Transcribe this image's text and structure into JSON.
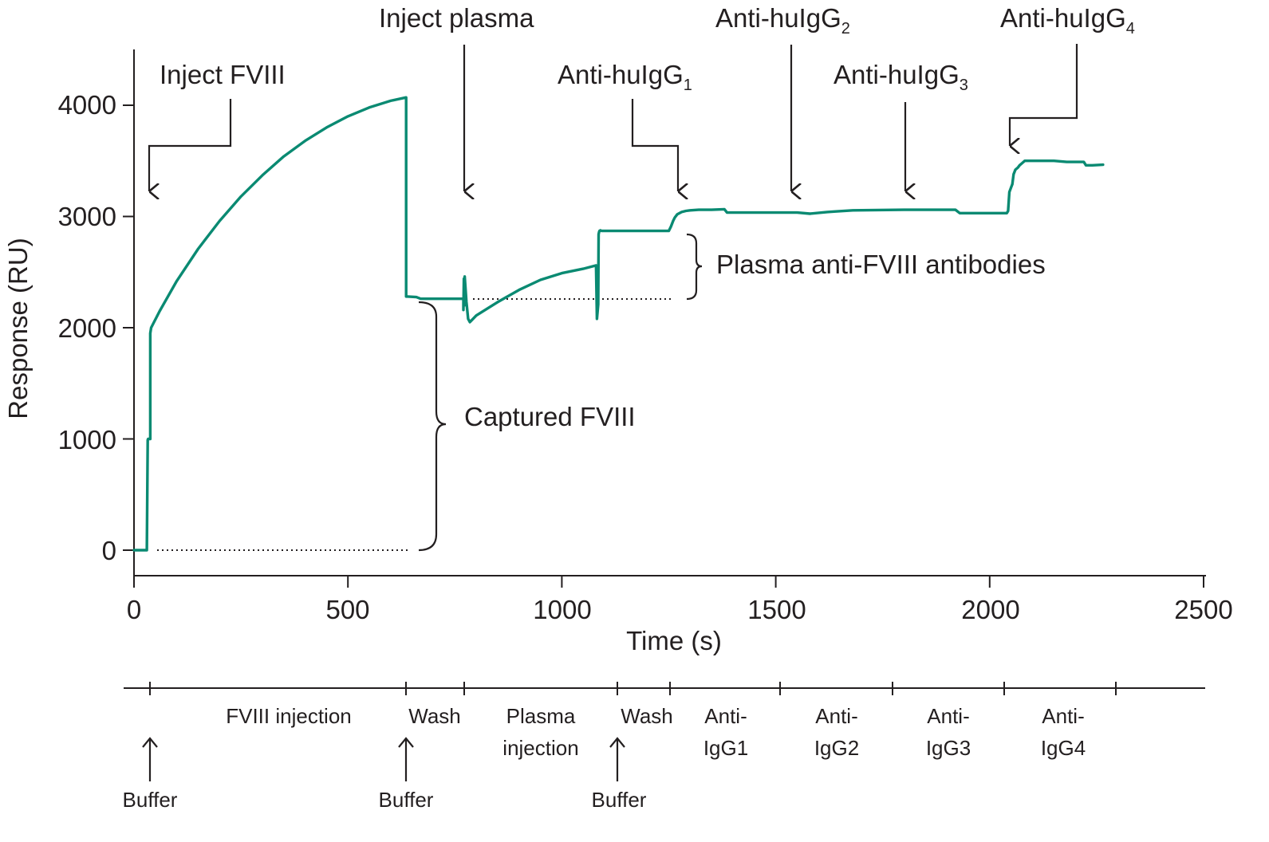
{
  "chart_data": {
    "type": "line",
    "xlabel": "Time (s)",
    "ylabel": "Response (RU)",
    "xlim": [
      0,
      2500
    ],
    "ylim": [
      -230,
      4560
    ],
    "xticks": [
      "0",
      "500",
      "1000",
      "1500",
      "2000",
      "2500"
    ],
    "yticks": [
      "0",
      "1000",
      "2000",
      "3000",
      "4000"
    ],
    "grid": false,
    "line_color": "#0a8a72",
    "series": [
      {
        "x": [
          0,
          30,
          32,
          33,
          38,
          38,
          40,
          60,
          100,
          150,
          200,
          250,
          300,
          350,
          400,
          450,
          500,
          550,
          600,
          636,
          636,
          640,
          660,
          670,
          690,
          720,
          770,
          770,
          771,
          772,
          773,
          777,
          781,
          785,
          790,
          800,
          850,
          900,
          950,
          1000,
          1050,
          1080,
          1082,
          1085,
          1086,
          1087,
          1088,
          1090,
          1093,
          1100,
          1120,
          1150,
          1200,
          1250,
          1255,
          1260,
          1264,
          1270,
          1280,
          1290,
          1300,
          1320,
          1350,
          1380,
          1386,
          1400,
          1450,
          1500,
          1550,
          1580,
          1620,
          1640,
          1680,
          1800,
          1920,
          1930,
          1950,
          2000,
          2040,
          2043,
          2046,
          2050,
          2053,
          2056,
          2058,
          2060,
          2066,
          2070,
          2076,
          2082,
          2100,
          2150,
          2180,
          2200,
          2220,
          2225,
          2240,
          2265
        ],
        "y": [
          0,
          0,
          990,
          1000,
          1000,
          1950,
          2000,
          2150,
          2420,
          2710,
          2960,
          3180,
          3370,
          3540,
          3680,
          3800,
          3900,
          3980,
          4040,
          4070,
          2280,
          2280,
          2275,
          2260,
          2260,
          2260,
          2260,
          2160,
          2440,
          2200,
          2460,
          2230,
          2080,
          2050,
          2070,
          2110,
          2230,
          2340,
          2430,
          2490,
          2530,
          2560,
          2080,
          2210,
          2840,
          2860,
          2870,
          2875,
          2870,
          2870,
          2870,
          2870,
          2870,
          2870,
          2910,
          2960,
          2990,
          3020,
          3040,
          3050,
          3055,
          3060,
          3060,
          3065,
          3035,
          3035,
          3035,
          3035,
          3035,
          3025,
          3040,
          3045,
          3055,
          3060,
          3060,
          3030,
          3030,
          3030,
          3030,
          3050,
          3220,
          3260,
          3290,
          3380,
          3400,
          3420,
          3440,
          3460,
          3480,
          3500,
          3500,
          3500,
          3490,
          3490,
          3490,
          3460,
          3460,
          3465
        ]
      }
    ],
    "annotations": {
      "inject_fviii": "Inject FVIII",
      "inject_plasma": "Inject plasma",
      "anti1": "Anti-huIgG",
      "anti1_sub": "1",
      "anti2": "Anti-huIgG",
      "anti2_sub": "2",
      "anti3": "Anti-huIgG",
      "anti3_sub": "3",
      "anti4": "Anti-huIgG",
      "anti4_sub": "4",
      "plasma_antibodies": "Plasma anti-FVIII antibodies",
      "captured_fviii": "Captured FVIII"
    },
    "phases": {
      "fviii_injection": "FVIII injection",
      "wash1": "Wash",
      "plasma_line1": "Plasma",
      "plasma_line2": "injection",
      "wash2": "Wash",
      "igg1_line1": "Anti-",
      "igg1_line2": "IgG1",
      "igg2_line1": "Anti-",
      "igg2_line2": "IgG2",
      "igg3_line1": "Anti-",
      "igg3_line2": "IgG3",
      "igg4_line1": "Anti-",
      "igg4_line2": "IgG4",
      "buffer1": "Buffer",
      "buffer2": "Buffer",
      "buffer3": "Buffer"
    }
  }
}
